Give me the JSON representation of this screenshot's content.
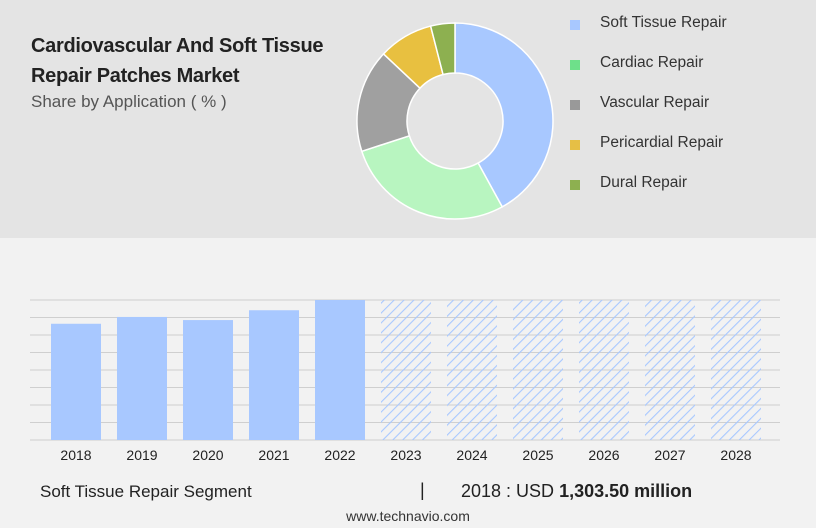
{
  "header": {
    "title": "Cardiovascular And Soft Tissue Repair Patches Market",
    "subtitle": "Share by Application ( % )"
  },
  "chart_data": [
    {
      "type": "pie",
      "variant": "donut",
      "labels": [
        "Soft Tissue Repair",
        "Cardiac Repair",
        "Vascular Repair",
        "Pericardial Repair",
        "Dural Repair"
      ],
      "values": [
        42,
        28,
        17,
        9,
        4
      ],
      "colors": [
        "#a8c8ff",
        "#b8f5c0",
        "#a0a0a0",
        "#e8c040",
        "#8db050"
      ],
      "legend_colors": [
        "#a8c8ff",
        "#6ee08a",
        "#999999",
        "#e6bf45",
        "#8db050"
      ],
      "legend_position": "right"
    },
    {
      "type": "bar",
      "categories": [
        "2018",
        "2019",
        "2020",
        "2021",
        "2022",
        "2023",
        "2024",
        "2025",
        "2026",
        "2027",
        "2028"
      ],
      "values": [
        1303.5,
        1380,
        1345,
        1455,
        1570,
        1570,
        1570,
        1570,
        1570,
        1570,
        1570
      ],
      "forecast_from": "2023",
      "ylim": [
        0,
        1570
      ],
      "grid": true,
      "bar_color": "#a8c8ff"
    }
  ],
  "footer": {
    "segment": "Soft Tissue Repair Segment",
    "divider": "|",
    "value_prefix": "2018 : USD",
    "value_bold": "1,303.50 million",
    "source": "www.technavio.com"
  }
}
